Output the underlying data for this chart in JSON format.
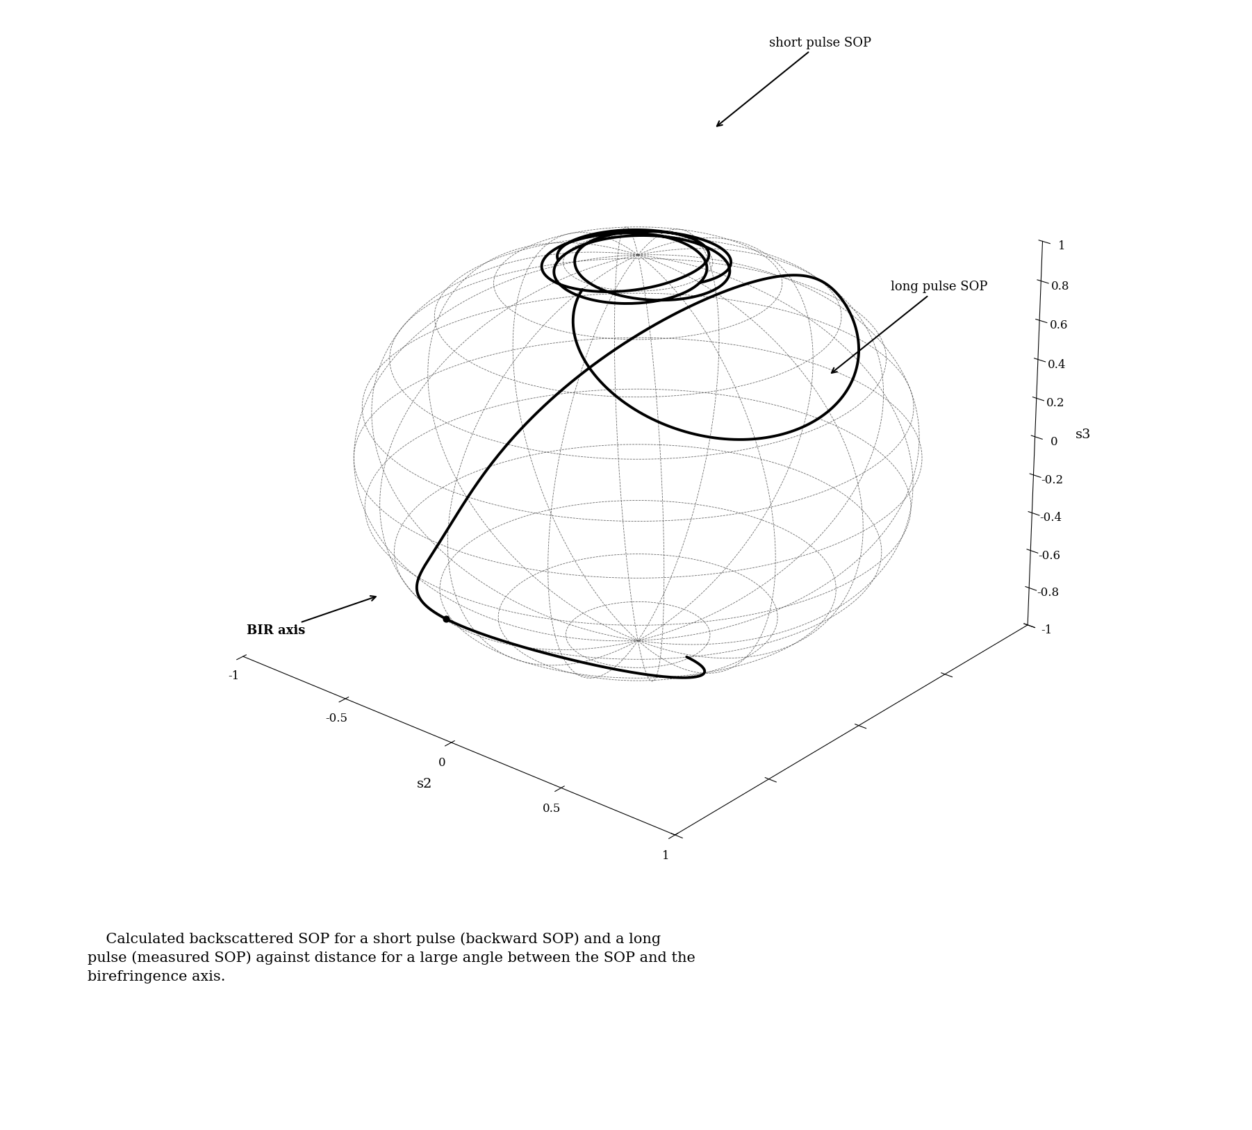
{
  "xlabel": "s2",
  "zlabel": "s3",
  "short_pulse_label": "short pulse SOP",
  "long_pulse_label": "long pulse SOP",
  "bir_axis_label": "BIR axis",
  "caption": "    Calculated backscattered SOP for a short pulse (backward SOP) and a long\npulse (measured SOP) against distance for a large angle between the SOP and the\nbirefringence axis.",
  "background_color": "white",
  "curve_color": "black",
  "curve_linewidth": 2.8,
  "elev": 25,
  "azim": -50,
  "wire_color": "#444444",
  "wire_lw": 0.6,
  "wire_alpha": 0.8
}
